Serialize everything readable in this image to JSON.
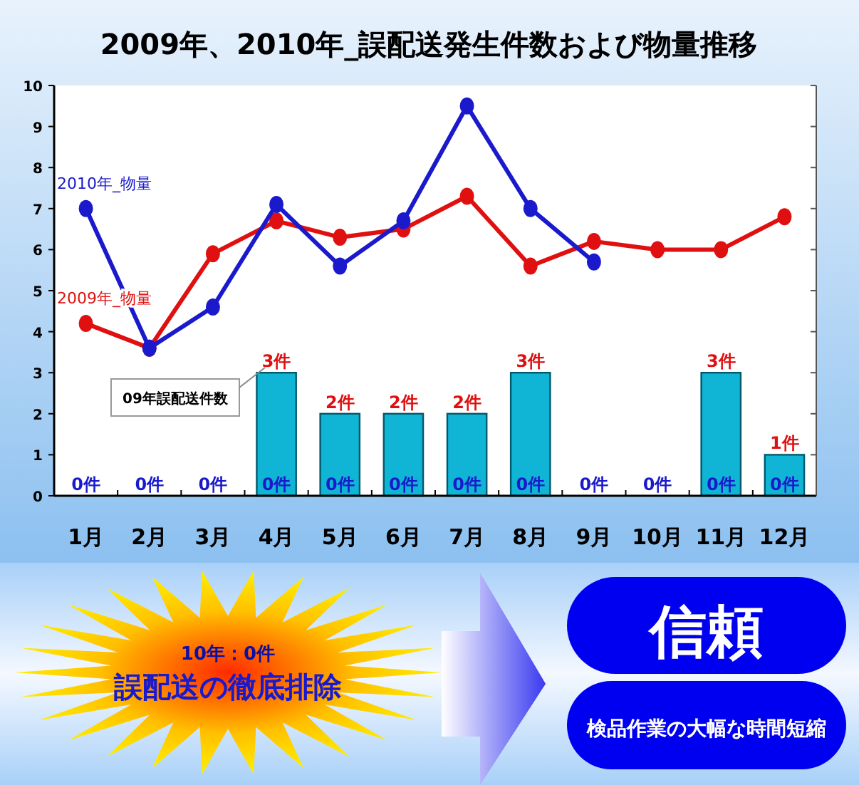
{
  "chart_data": {
    "type": "bar",
    "title": "2009年、2010年_誤配送発生件数および物量推移",
    "categories": [
      "1月",
      "2月",
      "3月",
      "4月",
      "5月",
      "6月",
      "7月",
      "8月",
      "9月",
      "10月",
      "11月",
      "12月"
    ],
    "series": [
      {
        "name": "09年誤配送件数",
        "color": "#10b4d4",
        "values": [
          0,
          0,
          0,
          3,
          2,
          2,
          2,
          3,
          0,
          0,
          3,
          1
        ],
        "value_labels": [
          null,
          null,
          null,
          "3件",
          "2件",
          "2件",
          "2件",
          "3件",
          null,
          null,
          "3件",
          "1件"
        ]
      },
      {
        "color": "#1a1acc",
        "values": [
          0,
          0,
          0,
          0,
          0,
          0,
          0,
          0,
          0,
          0,
          0,
          0
        ],
        "value_labels": [
          "0件",
          "0件",
          "0件",
          "0件",
          "0件",
          "0件",
          "0件",
          "0件",
          "0件",
          "0件",
          "0件",
          "0件"
        ]
      },
      {
        "name": "2009年_物量",
        "type": "line",
        "color": "#e01010",
        "values": [
          4.2,
          3.6,
          5.9,
          6.7,
          6.3,
          6.5,
          7.3,
          5.6,
          6.2,
          6.0,
          6.0,
          6.8
        ]
      },
      {
        "name": "2010年_物量",
        "type": "line",
        "color": "#1a1acc",
        "values": [
          7.0,
          3.6,
          4.6,
          7.1,
          5.6,
          6.7,
          9.5,
          7.0,
          5.7,
          null,
          null,
          null
        ]
      }
    ],
    "ylim": [
      0,
      10
    ],
    "yticks": [
      0,
      1,
      2,
      3,
      4,
      5,
      6,
      7,
      8,
      9,
      10
    ],
    "grid": false,
    "legend": false,
    "marker": "circle",
    "annotations": [
      "10年：0件",
      "誤配送の徹底排除",
      "信頼",
      "検品作業の大幅な時間短縮"
    ]
  }
}
